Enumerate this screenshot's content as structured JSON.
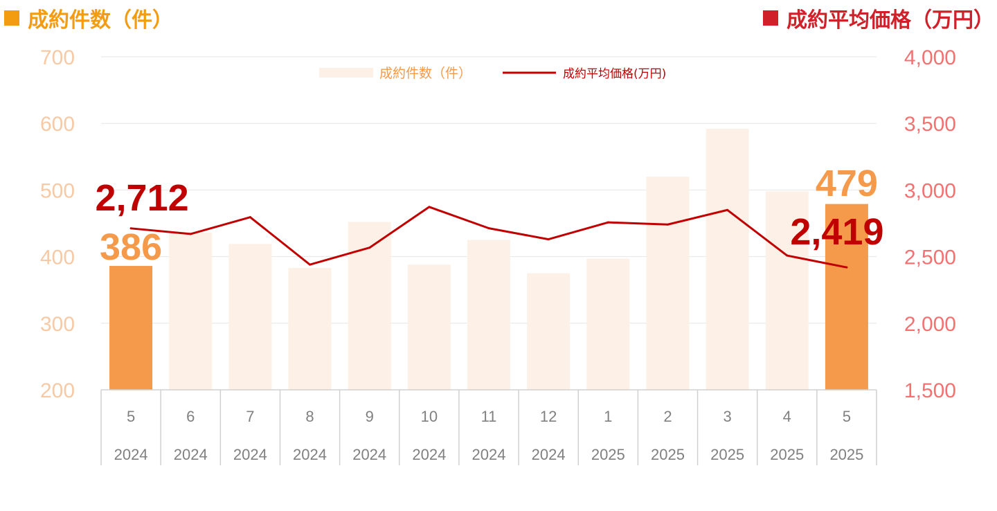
{
  "headers": {
    "left": "成約件数（件）",
    "right": "成約平均価格（万円）"
  },
  "colors": {
    "bar_light": "#fdf0e6",
    "bar_highlight": "#f59a4b",
    "line": "#c00000",
    "left_axis_text": "#f7c9a4",
    "right_axis_text": "#f47171",
    "header_left": "#f39c12",
    "header_right": "#d0202a",
    "label_left": "#f59a4b",
    "label_right": "#c00000",
    "category_text": "#808080",
    "grid": "#e6e6e6"
  },
  "chart_data": {
    "type": "bar",
    "categories": [
      {
        "month": "5",
        "year": "2024"
      },
      {
        "month": "6",
        "year": "2024"
      },
      {
        "month": "7",
        "year": "2024"
      },
      {
        "month": "8",
        "year": "2024"
      },
      {
        "month": "9",
        "year": "2024"
      },
      {
        "month": "10",
        "year": "2024"
      },
      {
        "month": "11",
        "year": "2024"
      },
      {
        "month": "12",
        "year": "2024"
      },
      {
        "month": "1",
        "year": "2025"
      },
      {
        "month": "2",
        "year": "2025"
      },
      {
        "month": "3",
        "year": "2025"
      },
      {
        "month": "4",
        "year": "2025"
      },
      {
        "month": "5",
        "year": "2025"
      }
    ],
    "series": [
      {
        "name": "成約件数（件）",
        "type": "bar",
        "axis": "left",
        "values": [
          386,
          436,
          419,
          383,
          452,
          388,
          425,
          375,
          397,
          520,
          592,
          498,
          479
        ],
        "highlight": [
          0,
          12
        ]
      },
      {
        "name": "成約平均価格(万円)",
        "type": "line",
        "axis": "right",
        "values": [
          2712,
          2670,
          2796,
          2440,
          2567,
          2873,
          2713,
          2630,
          2757,
          2741,
          2850,
          2508,
          2419
        ]
      }
    ],
    "left_axis": {
      "ylim": [
        200,
        700
      ],
      "ticks": [
        "200",
        "300",
        "400",
        "500",
        "600",
        "700"
      ]
    },
    "right_axis": {
      "ylim": [
        1500,
        4000
      ],
      "ticks": [
        "1,500",
        "2,000",
        "2,500",
        "3,000",
        "3,500",
        "4,000"
      ]
    },
    "data_labels": [
      {
        "series": 0,
        "index": 0,
        "text": "386"
      },
      {
        "series": 0,
        "index": 12,
        "text": "479"
      },
      {
        "series": 1,
        "index": 0,
        "text": "2,712"
      },
      {
        "series": 1,
        "index": 12,
        "text": "2,419"
      }
    ],
    "legend": "top-center",
    "grid": true
  }
}
